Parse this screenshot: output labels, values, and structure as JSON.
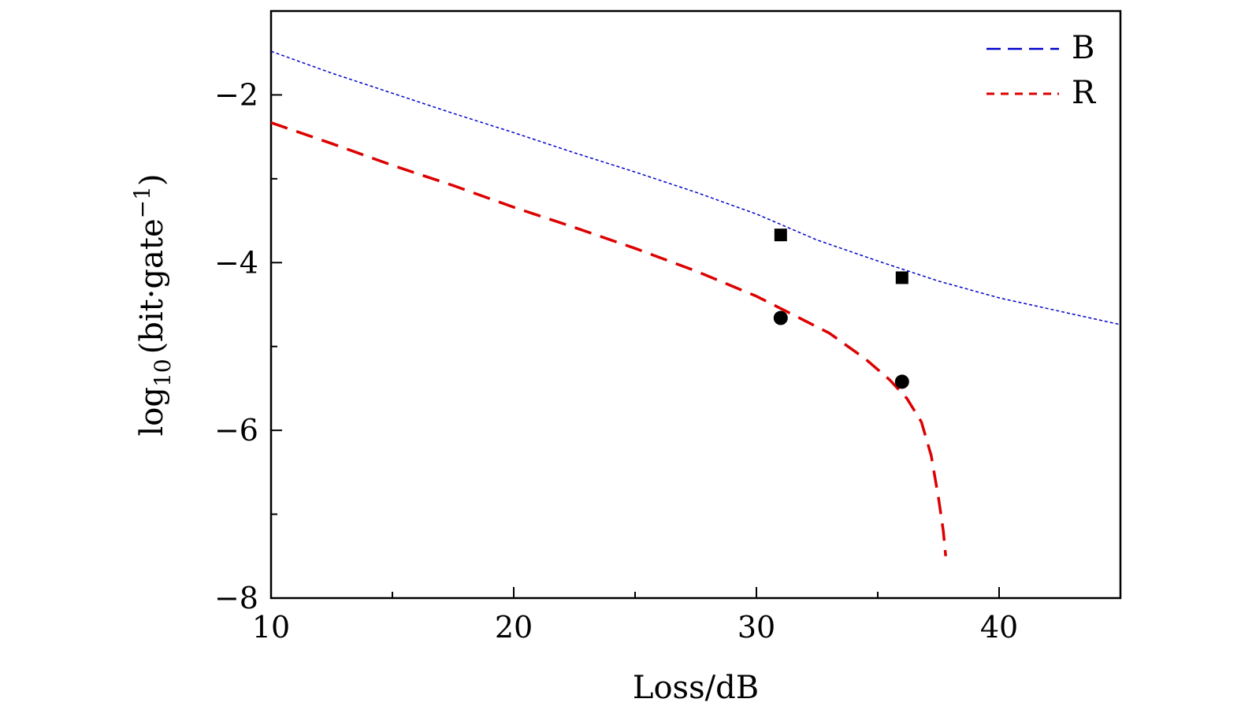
{
  "chart_data": {
    "type": "line",
    "title": "",
    "xlabel": "Loss/dB",
    "ylabel_main": "log",
    "ylabel_sub": "10",
    "ylabel_rest": "(bit·gate",
    "ylabel_sup": "−1",
    "ylabel_close": ")",
    "xlim": [
      10,
      45
    ],
    "ylim": [
      -8,
      -1
    ],
    "x_ticks": [
      10,
      20,
      30,
      40
    ],
    "x_tick_labels": [
      "10",
      "20",
      "30",
      "40"
    ],
    "x_minor_ticks": [
      15,
      25,
      35
    ],
    "y_ticks": [
      -2,
      -4,
      -6,
      -8
    ],
    "y_tick_labels": [
      "−2",
      "−4",
      "−6",
      "−8"
    ],
    "y_minor_ticks": [
      -3,
      -5,
      -7
    ],
    "grid": false,
    "legend_position": "top-right",
    "series": [
      {
        "name": "B",
        "style": "dashed-thin",
        "color": "#0000cc",
        "x": [
          10,
          12.5,
          15,
          17.5,
          20,
          22.5,
          25,
          27.5,
          30,
          32.5,
          35,
          37.5,
          40,
          42.5,
          45
        ],
        "y": [
          -1.48,
          -1.74,
          -1.98,
          -2.22,
          -2.45,
          -2.69,
          -2.92,
          -3.16,
          -3.42,
          -3.73,
          -3.98,
          -4.22,
          -4.42,
          -4.58,
          -4.74
        ]
      },
      {
        "name": "R",
        "style": "dashed-thick",
        "color": "#dd0000",
        "x": [
          10,
          12.5,
          15,
          17.5,
          20,
          22.5,
          25,
          27.5,
          30,
          31.5,
          33,
          34.5,
          35.5,
          36.2,
          36.8,
          37.2,
          37.5,
          37.7,
          37.8
        ],
        "y": [
          -2.33,
          -2.58,
          -2.84,
          -3.08,
          -3.34,
          -3.58,
          -3.83,
          -4.1,
          -4.4,
          -4.62,
          -4.84,
          -5.15,
          -5.4,
          -5.62,
          -5.9,
          -6.3,
          -6.8,
          -7.2,
          -7.5
        ]
      }
    ],
    "markers": [
      {
        "shape": "square",
        "x": 31.0,
        "y": -3.67
      },
      {
        "shape": "square",
        "x": 36.0,
        "y": -4.18
      },
      {
        "shape": "circle",
        "x": 31.0,
        "y": -4.66
      },
      {
        "shape": "circle",
        "x": 36.0,
        "y": -5.42
      }
    ]
  }
}
